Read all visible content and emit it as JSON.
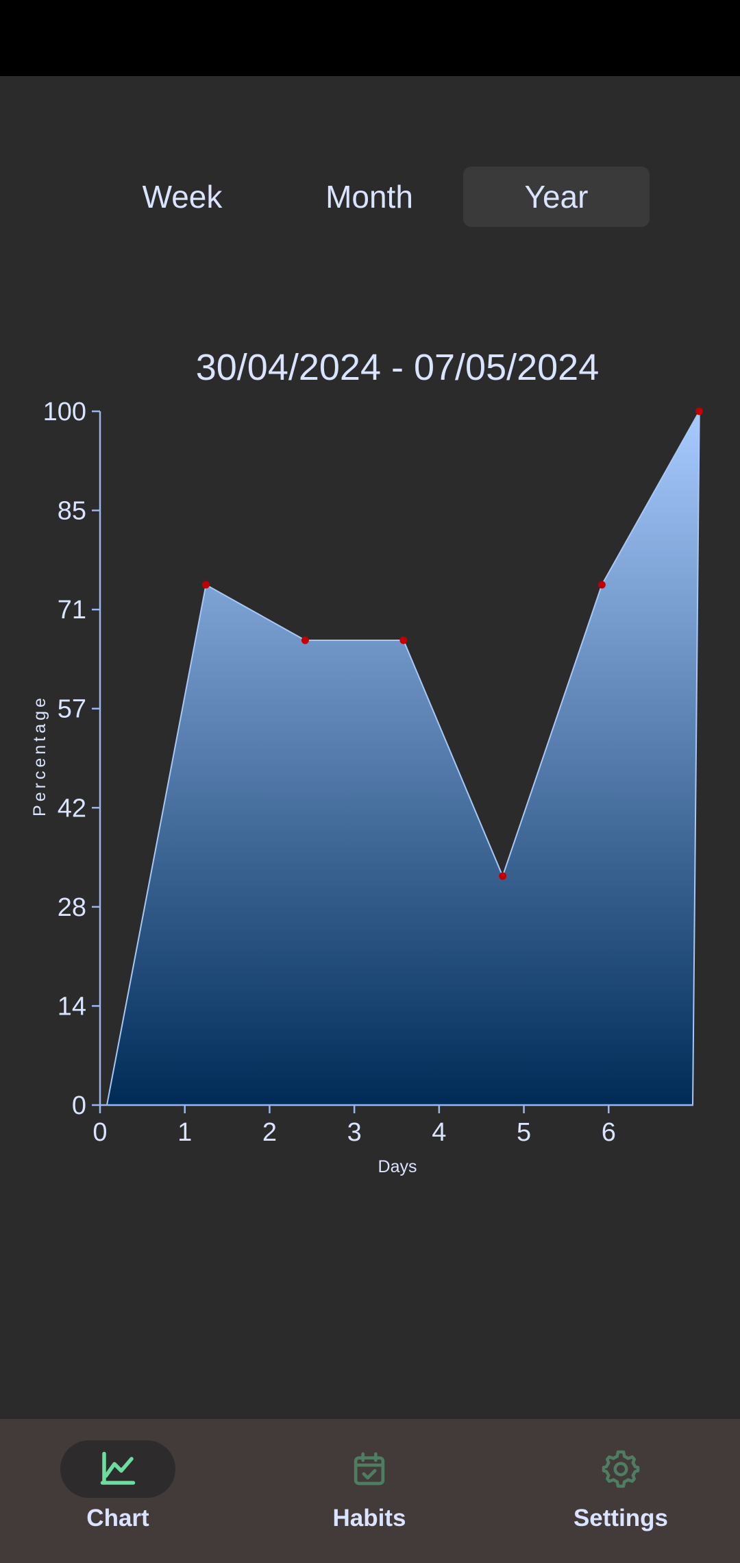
{
  "period_tabs": {
    "items": [
      {
        "label": "Week",
        "selected": false
      },
      {
        "label": "Month",
        "selected": false
      },
      {
        "label": "Year",
        "selected": true
      }
    ]
  },
  "chart_data": {
    "type": "area",
    "title": "30/04/2024 - 07/05/2024",
    "xlabel": "Days",
    "ylabel": "Percentage",
    "x": [
      0,
      1.25,
      2.42,
      3.58,
      4.75,
      5.92,
      7.07
    ],
    "y": [
      0,
      75,
      67,
      67,
      33,
      75,
      100
    ],
    "marked_points": [
      1,
      2,
      3,
      4,
      5,
      6
    ],
    "xticks": [
      "0",
      "1",
      "2",
      "3",
      "4",
      "5",
      "6"
    ],
    "yticks": [
      "0",
      "14",
      "28",
      "42",
      "57",
      "71",
      "85",
      "100"
    ],
    "xlim": [
      0,
      7
    ],
    "ylim": [
      0,
      100
    ],
    "colors": {
      "line": "#a8c8f8",
      "fill_top": "#a8cbff",
      "fill_bottom": "#002b57",
      "marker": "#c00000",
      "axis": "#9ab8ee"
    }
  },
  "bottom_nav": {
    "items": [
      {
        "label": "Chart",
        "icon": "chart-line-icon",
        "active": true
      },
      {
        "label": "Habits",
        "icon": "calendar-check-icon",
        "active": false
      },
      {
        "label": "Settings",
        "icon": "gear-icon",
        "active": false
      }
    ],
    "active_color": "#6ddca0",
    "inactive_color": "#4f7d62"
  }
}
